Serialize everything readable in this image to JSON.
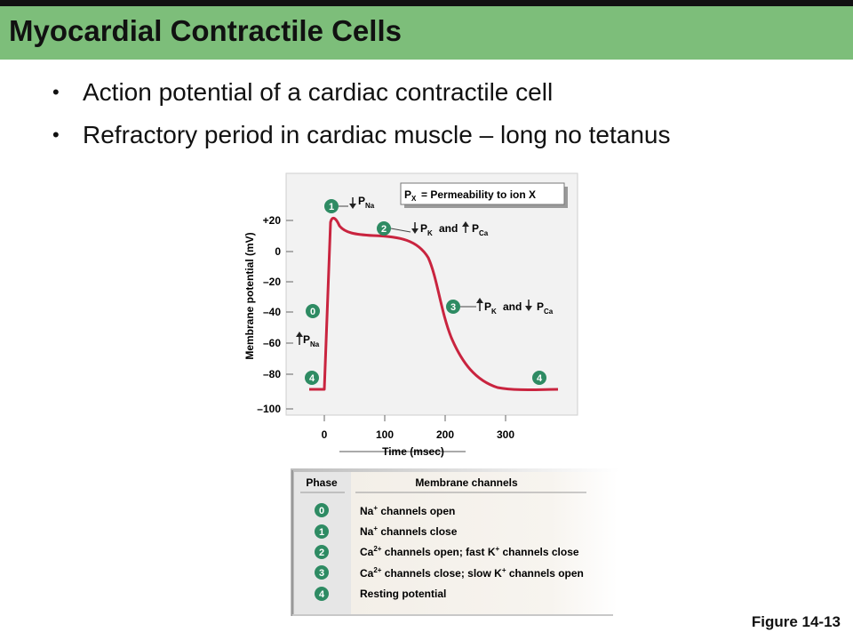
{
  "title": "Myocardial Contractile Cells",
  "bullets": [
    "Action potential of a cardiac contractile cell",
    "Refractory period in cardiac muscle – long no tetanus"
  ],
  "figure_label": "Figure 14-13",
  "graph": {
    "y_axis_label": "Membrane potential (mV)",
    "y_ticks": [
      "+20",
      "0",
      "–20",
      "–40",
      "–60",
      "–80",
      "–100"
    ],
    "x_ticks": [
      "0",
      "100",
      "200",
      "300"
    ],
    "x_axis_label": "Time (msec)",
    "legend_px": "P",
    "legend_px_sub": "X",
    "legend_text": "= Permeability to ion X",
    "annotations": {
      "p": "P",
      "na": "Na",
      "k": "K",
      "ca": "Ca",
      "and": "and"
    },
    "phase_numbers": [
      "1",
      "2",
      "0",
      "3",
      "4",
      "4"
    ]
  },
  "table": {
    "header_phase": "Phase",
    "header_channels": "Membrane channels",
    "rows": [
      {
        "phase": "0",
        "pre": "Na",
        "sup": "+",
        "post": " channels open"
      },
      {
        "phase": "1",
        "pre": "Na",
        "sup": "+",
        "post": " channels close"
      },
      {
        "phase": "2",
        "pre": "Ca",
        "sup": "2+",
        "post": " channels open; fast K",
        "sup2": "+",
        "post2": " channels close"
      },
      {
        "phase": "3",
        "pre": "Ca",
        "sup": "2+",
        "post": " channels close; slow K",
        "sup2": "+",
        "post2": " channels open"
      },
      {
        "phase": "4",
        "pre": "Resting potential",
        "sup": "",
        "post": ""
      }
    ]
  },
  "colors": {
    "title_bar": "#7dbe7a",
    "curve": "#c9243f",
    "badge": "#2e8b63",
    "panel": "#f3efe8"
  }
}
